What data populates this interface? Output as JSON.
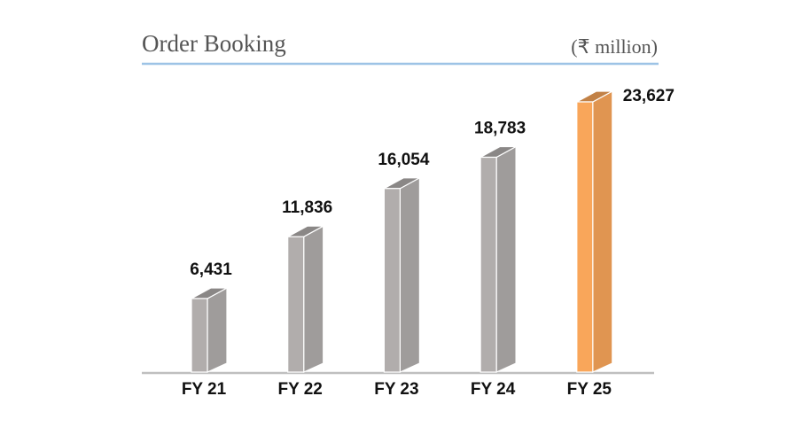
{
  "chart_data": {
    "type": "bar3d",
    "title": "Order Booking",
    "unit": "(₹ million)",
    "categories": [
      "FY 21",
      "FY 22",
      "FY 23",
      "FY 24",
      "FY 25"
    ],
    "values": [
      6431,
      11836,
      16054,
      18783,
      23627
    ],
    "value_labels": [
      "6,431",
      "11,836",
      "16,054",
      "18,783",
      "23,627"
    ],
    "colors": [
      "#b1adac",
      "#b1adac",
      "#b1adac",
      "#b1adac",
      "#f9a65a"
    ]
  }
}
